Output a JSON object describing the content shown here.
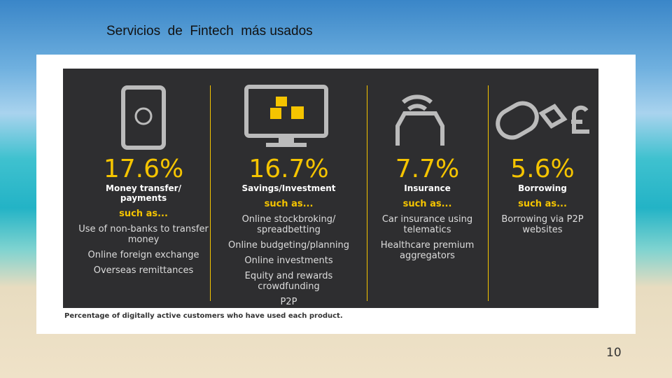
{
  "title": "Servicios  de  Fintech  más usados",
  "columns": [
    {
      "percent": "17.6%",
      "label": "Money transfer/ payments",
      "such_as": "such as...",
      "items": [
        "Use of non-banks to transfer money",
        "Online foreign exchange",
        "Overseas remittances"
      ]
    },
    {
      "percent": "16.7%",
      "label": "Savings/Investment",
      "such_as": "such as...",
      "items": [
        "Online stockbroking/ spreadbetting",
        "Online budgeting/planning",
        "Online investments",
        "Equity and rewards crowdfunding",
        "P2P"
      ]
    },
    {
      "percent": "7.7%",
      "label": "Insurance",
      "such_as": "such as...",
      "items": [
        "Car insurance using telematics",
        "Healthcare premium aggregators"
      ]
    },
    {
      "percent": "5.6%",
      "label": "Borrowing",
      "such_as": "such as...",
      "items": [
        "Borrowing via P2P websites"
      ]
    }
  ],
  "caption": "Percentage of digitally active customers who have used each product.",
  "page_number": "10"
}
